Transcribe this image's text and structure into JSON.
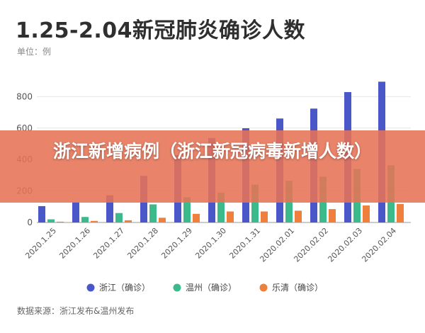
{
  "header": {
    "title": "1.25-2.04新冠肺炎确诊人数",
    "unit_label": "单位：例"
  },
  "footer": {
    "source": "数据来源：浙江发布&温州发布"
  },
  "overlay": {
    "caption": "浙江新增病例（浙江新冠病毒新增人数）"
  },
  "chart_data": {
    "type": "bar",
    "title": "1.25-2.04新冠肺炎确诊人数",
    "ylabel": "单位：例",
    "ylim": [
      0,
      1000
    ],
    "yticks": [
      0,
      200,
      400,
      600,
      800
    ],
    "grid": true,
    "legend_position": "bottom",
    "categories": [
      "2020.1.25",
      "2020.1.26",
      "2020.1.27",
      "2020.1.28",
      "2020.1.29",
      "2020.1.30",
      "2020.1.31",
      "2020.02.01",
      "2020.02.02",
      "2020.02.03",
      "2020.02.04"
    ],
    "series": [
      {
        "name": "浙江（确诊）",
        "color": "#4a57c9",
        "values": [
          104,
          128,
          173,
          296,
          428,
          537,
          599,
          661,
          724,
          829,
          895
        ]
      },
      {
        "name": "温州（确诊）",
        "color": "#3dba8c",
        "values": [
          20,
          35,
          60,
          115,
          160,
          190,
          241,
          265,
          291,
          340,
          364
        ]
      },
      {
        "name": "乐清（确诊）",
        "color": "#ee7f3d",
        "values": [
          5,
          10,
          14,
          30,
          55,
          70,
          70,
          75,
          85,
          108,
          118
        ]
      }
    ]
  }
}
